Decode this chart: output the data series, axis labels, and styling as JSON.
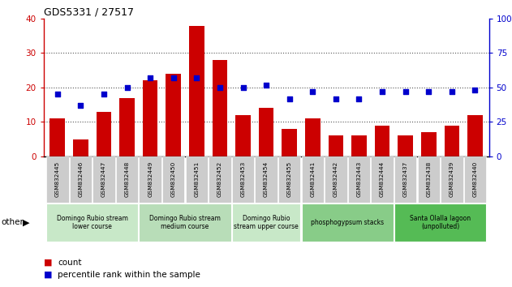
{
  "title": "GDS5331 / 27517",
  "samples": [
    "GSM832445",
    "GSM832446",
    "GSM832447",
    "GSM832448",
    "GSM832449",
    "GSM832450",
    "GSM832451",
    "GSM832452",
    "GSM832453",
    "GSM832454",
    "GSM832455",
    "GSM832441",
    "GSM832442",
    "GSM832443",
    "GSM832444",
    "GSM832437",
    "GSM832438",
    "GSM832439",
    "GSM832440"
  ],
  "counts": [
    11,
    5,
    13,
    17,
    22,
    24,
    38,
    28,
    12,
    14,
    8,
    11,
    6,
    6,
    9,
    6,
    7,
    9,
    12
  ],
  "percentiles": [
    45,
    37,
    45,
    50,
    57,
    57,
    57,
    50,
    50,
    52,
    42,
    47,
    42,
    42,
    47,
    47,
    47,
    47,
    48
  ],
  "groups": [
    {
      "label": "Domingo Rubio stream\nlower course",
      "start": 0,
      "end": 4,
      "color": "#c8e8c8"
    },
    {
      "label": "Domingo Rubio stream\nmedium course",
      "start": 4,
      "end": 8,
      "color": "#b8ddb8"
    },
    {
      "label": "Domingo Rubio\nstream upper course",
      "start": 8,
      "end": 11,
      "color": "#c8e8c8"
    },
    {
      "label": "phosphogypsum stacks",
      "start": 11,
      "end": 15,
      "color": "#88cc88"
    },
    {
      "label": "Santa Olalla lagoon\n(unpolluted)",
      "start": 15,
      "end": 19,
      "color": "#55bb55"
    }
  ],
  "bar_color": "#cc0000",
  "dot_color": "#0000cc",
  "left_ylim": [
    0,
    40
  ],
  "right_ylim": [
    0,
    100
  ],
  "left_yticks": [
    0,
    10,
    20,
    30,
    40
  ],
  "right_yticks": [
    0,
    25,
    50,
    75,
    100
  ],
  "left_yticklabels": [
    "0",
    "10",
    "20",
    "30",
    "40"
  ],
  "right_yticklabels": [
    "0",
    "25",
    "50",
    "75",
    "100%"
  ],
  "grid_color": "#555555",
  "xtick_bg": "#cccccc"
}
